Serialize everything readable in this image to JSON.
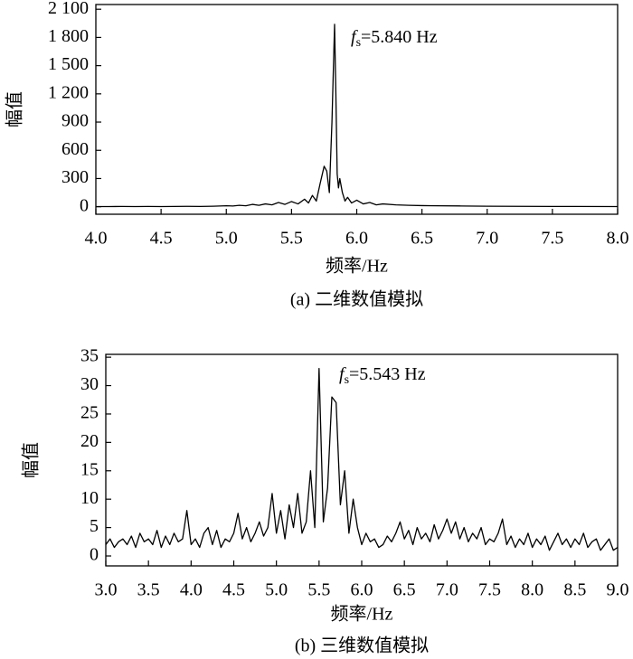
{
  "chart_data": [
    {
      "type": "line",
      "caption": "(a) 二维数值模拟",
      "x_label": "频率/Hz",
      "y_label": "幅值",
      "annotation": {
        "italic": "f",
        "sub": "s",
        "text": "=5.840 Hz"
      },
      "color": "#000000",
      "x": [
        4.0,
        4.1,
        4.2,
        4.3,
        4.4,
        4.5,
        4.6,
        4.7,
        4.8,
        4.9,
        5.0,
        5.05,
        5.1,
        5.15,
        5.2,
        5.25,
        5.3,
        5.35,
        5.4,
        5.45,
        5.5,
        5.55,
        5.6,
        5.63,
        5.66,
        5.69,
        5.72,
        5.75,
        5.77,
        5.79,
        5.81,
        5.83,
        5.84,
        5.85,
        5.86,
        5.87,
        5.89,
        5.91,
        5.93,
        5.96,
        6.0,
        6.05,
        6.1,
        6.15,
        6.2,
        6.3,
        6.4,
        6.5,
        6.6,
        6.8,
        7.0,
        7.5,
        8.0
      ],
      "values": [
        2,
        2,
        3,
        2,
        3,
        2,
        3,
        4,
        3,
        5,
        10,
        8,
        15,
        10,
        25,
        15,
        30,
        20,
        45,
        25,
        55,
        30,
        80,
        40,
        120,
        60,
        250,
        430,
        380,
        150,
        900,
        1940,
        1200,
        350,
        200,
        300,
        150,
        60,
        100,
        40,
        70,
        30,
        45,
        20,
        30,
        20,
        15,
        12,
        10,
        8,
        5,
        3,
        2
      ],
      "xlim": [
        4.0,
        8.0
      ],
      "xticks": [
        {
          "value": 4.0,
          "label": "4.0"
        },
        {
          "value": 4.5,
          "label": "4.5"
        },
        {
          "value": 5.0,
          "label": "5.0"
        },
        {
          "value": 5.5,
          "label": "5.5"
        },
        {
          "value": 6.0,
          "label": "6.0"
        },
        {
          "value": 6.5,
          "label": "6.5"
        },
        {
          "value": 7.0,
          "label": "7.0"
        },
        {
          "value": 7.5,
          "label": "7.5"
        },
        {
          "value": 8.0,
          "label": "8.0"
        }
      ],
      "ylim": [
        -80,
        2150
      ],
      "yticks": [
        0,
        300,
        600,
        900,
        {
          "value": 1200,
          "label": "1 200"
        },
        {
          "value": 1500,
          "label": "1 500"
        },
        {
          "value": 1800,
          "label": "1 800"
        },
        {
          "value": 2100,
          "label": "2 100"
        }
      ]
    },
    {
      "type": "line",
      "caption": "(b) 三维数值模拟",
      "x_label": "频率/Hz",
      "y_label": "幅值",
      "annotation": {
        "italic": "f",
        "sub": "s",
        "text": "=5.543 Hz"
      },
      "color": "#000000",
      "x": [
        3.0,
        3.05,
        3.1,
        3.15,
        3.2,
        3.25,
        3.3,
        3.35,
        3.4,
        3.45,
        3.5,
        3.55,
        3.6,
        3.65,
        3.7,
        3.75,
        3.8,
        3.85,
        3.9,
        3.95,
        4.0,
        4.05,
        4.1,
        4.15,
        4.2,
        4.25,
        4.3,
        4.35,
        4.4,
        4.45,
        4.5,
        4.55,
        4.6,
        4.65,
        4.7,
        4.75,
        4.8,
        4.85,
        4.9,
        4.95,
        5.0,
        5.05,
        5.1,
        5.15,
        5.2,
        5.25,
        5.3,
        5.35,
        5.4,
        5.45,
        5.5,
        5.55,
        5.6,
        5.65,
        5.7,
        5.75,
        5.8,
        5.85,
        5.9,
        5.95,
        6.0,
        6.05,
        6.1,
        6.15,
        6.2,
        6.25,
        6.3,
        6.35,
        6.4,
        6.45,
        6.5,
        6.55,
        6.6,
        6.65,
        6.7,
        6.75,
        6.8,
        6.85,
        6.9,
        6.95,
        7.0,
        7.05,
        7.1,
        7.15,
        7.2,
        7.25,
        7.3,
        7.35,
        7.4,
        7.45,
        7.5,
        7.55,
        7.6,
        7.65,
        7.7,
        7.75,
        7.8,
        7.85,
        7.9,
        7.95,
        8.0,
        8.05,
        8.1,
        8.15,
        8.2,
        8.25,
        8.3,
        8.35,
        8.4,
        8.45,
        8.5,
        8.55,
        8.6,
        8.65,
        8.7,
        8.75,
        8.8,
        8.85,
        8.9,
        8.95,
        9.0
      ],
      "values": [
        2,
        3,
        1.5,
        2.5,
        3,
        2,
        3.5,
        1.5,
        4,
        2.5,
        3,
        2,
        4.5,
        1.5,
        3.5,
        2,
        4,
        2.5,
        3,
        8,
        2,
        3,
        1.5,
        4,
        5,
        2,
        4.5,
        1.5,
        3,
        2.5,
        4,
        7.5,
        3,
        5,
        2.5,
        4,
        6,
        3.5,
        5,
        11,
        4,
        8,
        3,
        9,
        5,
        11,
        4,
        6,
        15,
        5,
        33,
        6,
        12,
        28,
        27,
        9,
        15,
        4,
        10,
        5,
        2,
        4,
        2.5,
        3,
        1.5,
        2,
        3.5,
        2.5,
        4,
        6,
        3,
        4.5,
        2,
        5,
        3,
        4,
        2.5,
        5.5,
        3,
        4.5,
        6.5,
        4,
        6,
        3,
        5,
        2.5,
        4,
        3,
        5,
        2,
        3,
        2.5,
        4,
        6.5,
        2,
        3.5,
        1.5,
        3,
        2,
        4,
        1.5,
        3,
        2,
        3.5,
        1,
        2.5,
        4,
        2,
        3,
        1.5,
        3,
        2,
        4,
        1.5,
        2.5,
        3,
        1,
        2,
        3,
        1,
        1.5
      ],
      "xlim": [
        3.0,
        9.0
      ],
      "xticks": [
        {
          "value": 3.0,
          "label": "3.0"
        },
        {
          "value": 3.5,
          "label": "3.5"
        },
        {
          "value": 4.0,
          "label": "4.0"
        },
        {
          "value": 4.5,
          "label": "4.5"
        },
        {
          "value": 5.0,
          "label": "5.0"
        },
        {
          "value": 5.5,
          "label": "5.5"
        },
        {
          "value": 6.0,
          "label": "6.0"
        },
        {
          "value": 6.5,
          "label": "6.5"
        },
        {
          "value": 7.0,
          "label": "7.0"
        },
        {
          "value": 7.5,
          "label": "7.5"
        },
        {
          "value": 8.0,
          "label": "8.0"
        },
        {
          "value": 8.5,
          "label": "8.5"
        },
        {
          "value": 9.0,
          "label": "9.0"
        }
      ],
      "ylim": [
        -1.75,
        35.5
      ],
      "yticks": [
        0,
        5,
        10,
        15,
        20,
        25,
        30,
        35
      ]
    }
  ]
}
